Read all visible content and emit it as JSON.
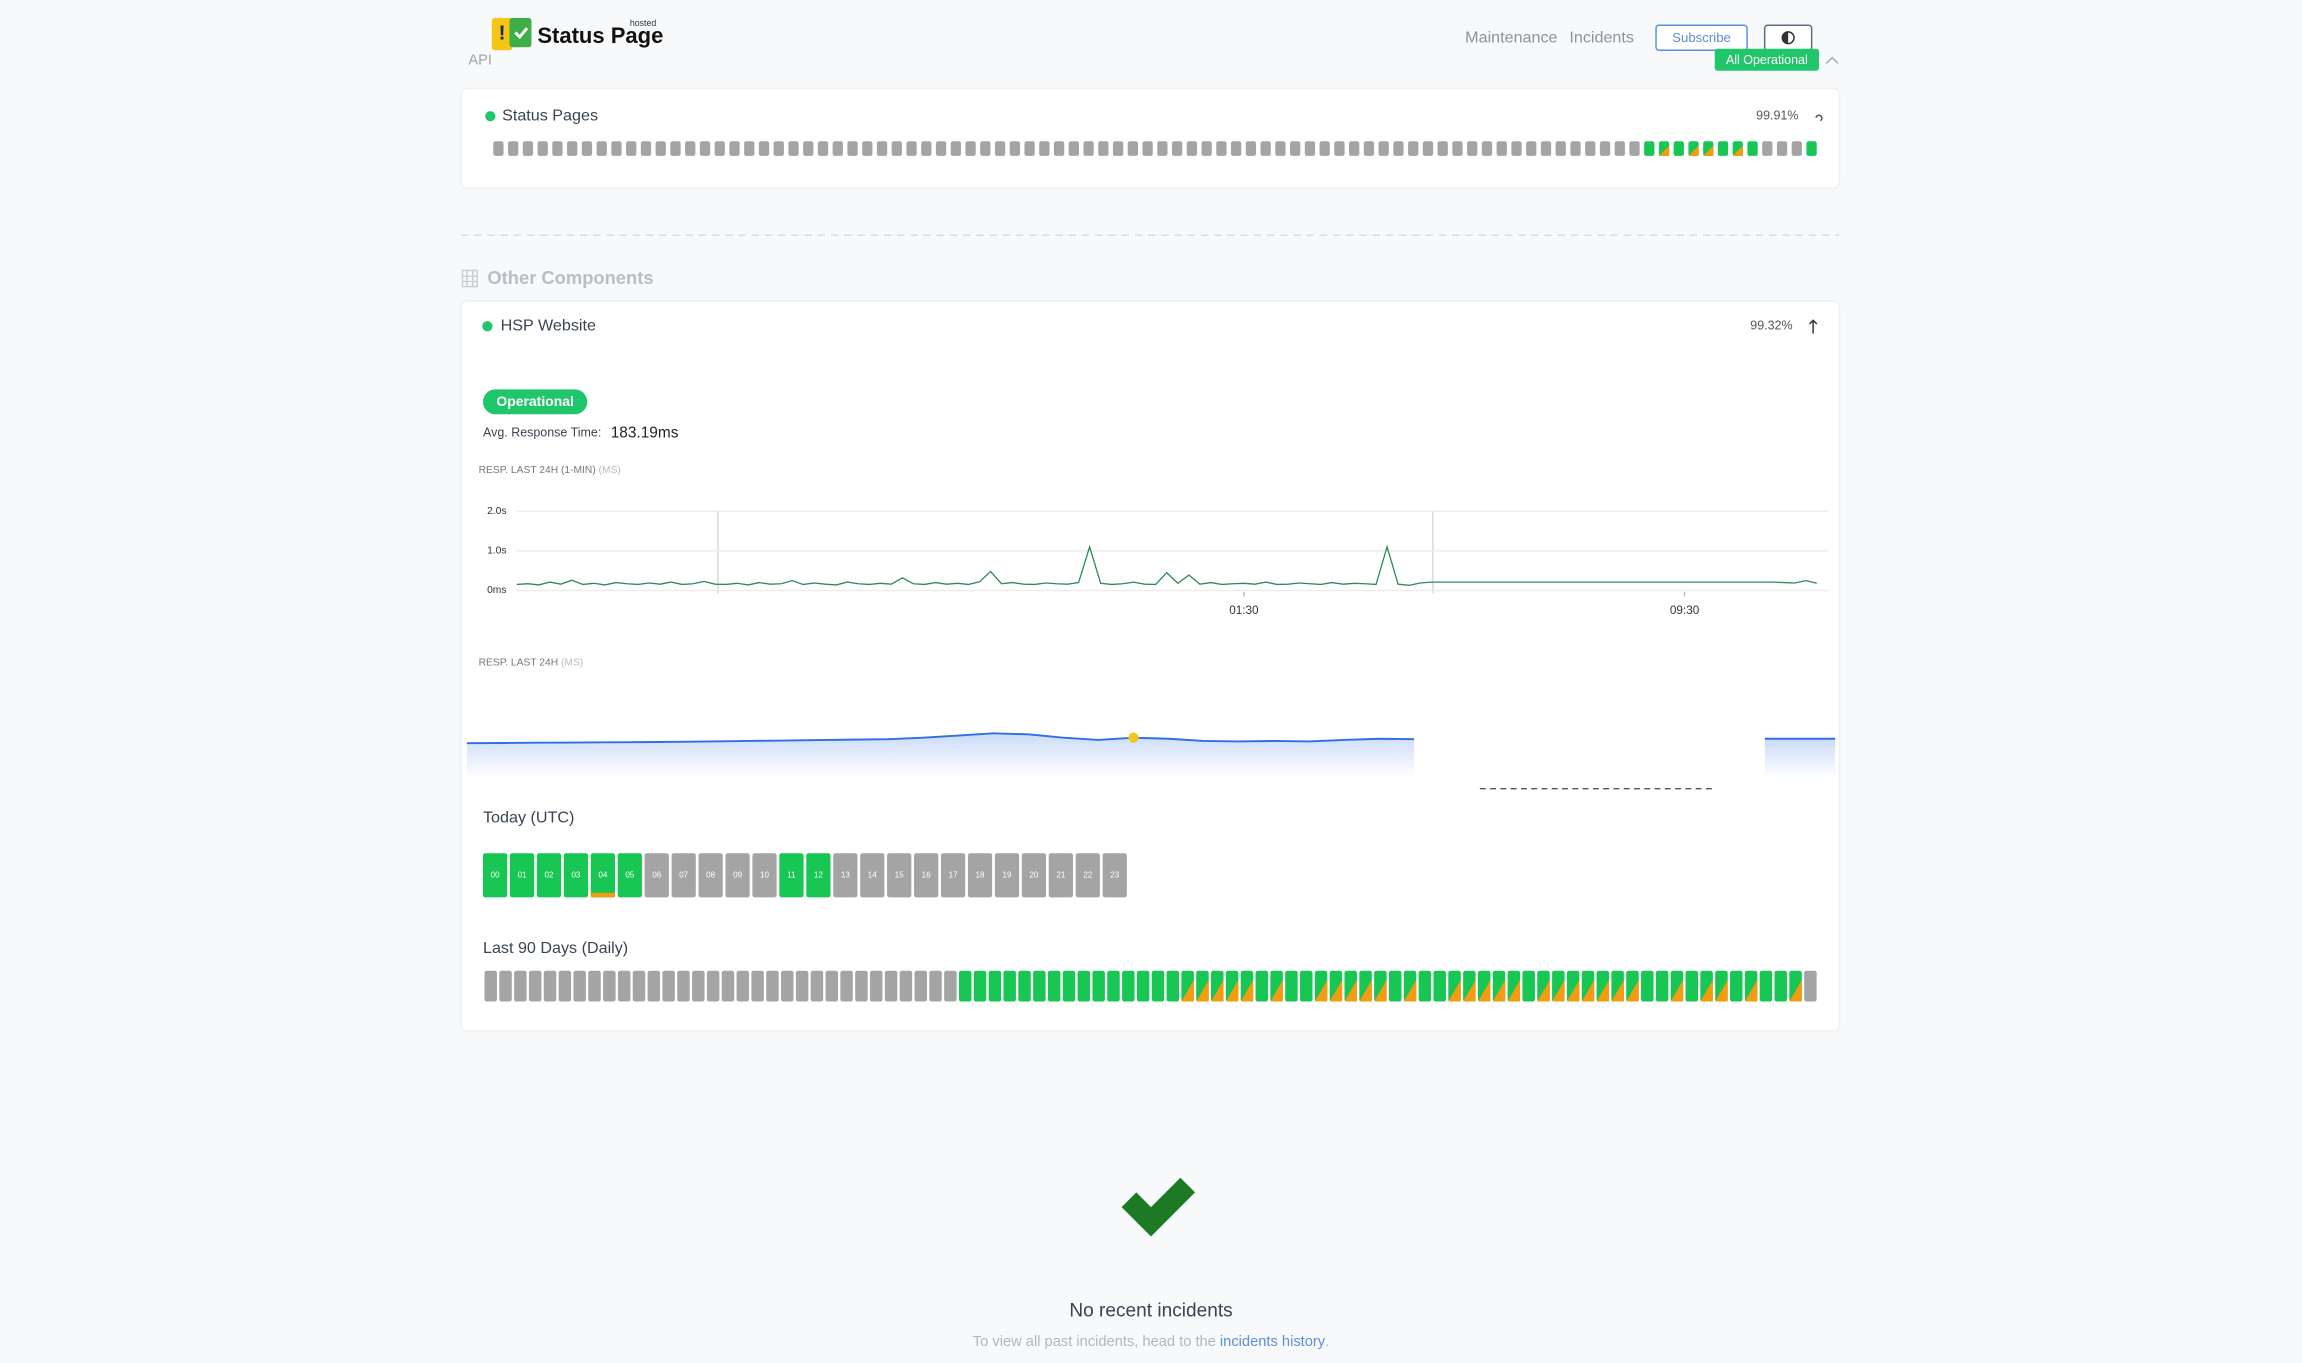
{
  "header": {
    "logo": "Status Page",
    "logo_tag": "hosted",
    "nav": [
      "Maintenance",
      "Incidents"
    ],
    "subscribe": "Subscribe",
    "status": "All Operational"
  },
  "groups": [
    {
      "name": "API",
      "components": [
        {
          "name": "Status Pages",
          "uptime": "99.91%"
        }
      ]
    },
    {
      "name": "Other Components",
      "components": [
        {
          "name": "HSP Website",
          "uptime": "99.32%",
          "status": "Operational",
          "avg_label": "Avg. Response Time:",
          "avg_value": "183.19ms"
        }
      ]
    }
  ],
  "chart_data": [
    {
      "type": "line",
      "title": "RESP. LAST 24H (1-MIN)",
      "unit": "(MS)",
      "color": "#2e8b57",
      "values": [
        150,
        170,
        140,
        210,
        160,
        260,
        150,
        180,
        140,
        200,
        170,
        150,
        190,
        160,
        210,
        150,
        170,
        230,
        160,
        150,
        180,
        140,
        200,
        160,
        170,
        250,
        150,
        190,
        160,
        140,
        210,
        170,
        150,
        180,
        160,
        320,
        170,
        150,
        200,
        160,
        180,
        150,
        220,
        480,
        170,
        200,
        160,
        150,
        190,
        170,
        160,
        200,
        1100,
        180,
        150,
        170,
        210,
        160,
        150,
        450,
        180,
        390,
        160,
        200,
        150,
        170,
        180,
        160,
        210,
        150,
        160,
        190,
        170,
        150,
        200,
        160,
        180,
        170,
        150,
        1100,
        160,
        130,
        190,
        210,
        210,
        210,
        210,
        210,
        210,
        210,
        210,
        210,
        210,
        210,
        210,
        210,
        210,
        210,
        210,
        210,
        210,
        210,
        210,
        210,
        210,
        210,
        210,
        210,
        210,
        210,
        210,
        210,
        210,
        210,
        210,
        200,
        190,
        250,
        180
      ],
      "xlim": [
        0,
        119
      ],
      "xticks": [
        {
          "value": 66,
          "label": "01:30"
        },
        {
          "value": 106,
          "label": "09:30"
        }
      ],
      "ylim": [
        0,
        2000
      ],
      "yticks": [
        {
          "value": 2000,
          "label": "2.0s"
        },
        {
          "value": 1000,
          "label": "1.0s"
        },
        {
          "value": 0,
          "label": "0ms"
        }
      ],
      "grid": true
    },
    {
      "type": "area",
      "title": "RESP. LAST 24H",
      "unit": "(MS)",
      "color": "#2f6fe0",
      "values": [
        160,
        161,
        162,
        163,
        164,
        165,
        166,
        168,
        170,
        172,
        174,
        176,
        178,
        185,
        195,
        205,
        200,
        185,
        175,
        185,
        180,
        170,
        168,
        170,
        168,
        175,
        180,
        178,
        null,
        null,
        null,
        null,
        null,
        null,
        null,
        null,
        null,
        180,
        180,
        180
      ],
      "ylim": [
        0,
        400
      ]
    }
  ],
  "today": {
    "title": "Today (UTC)",
    "hours": [
      "00",
      "01",
      "02",
      "03",
      "04",
      "05",
      "06",
      "07",
      "08",
      "09",
      "10",
      "11",
      "12",
      "13",
      "14",
      "15",
      "16",
      "17",
      "18",
      "19",
      "20",
      "21",
      "22",
      "23"
    ]
  },
  "daily": {
    "title": "Last 90 Days (Daily)"
  },
  "incidents": {
    "title": "No recent incidents",
    "text": "To view all past incidents, head to the ",
    "link": "incidents history",
    "end": "."
  }
}
